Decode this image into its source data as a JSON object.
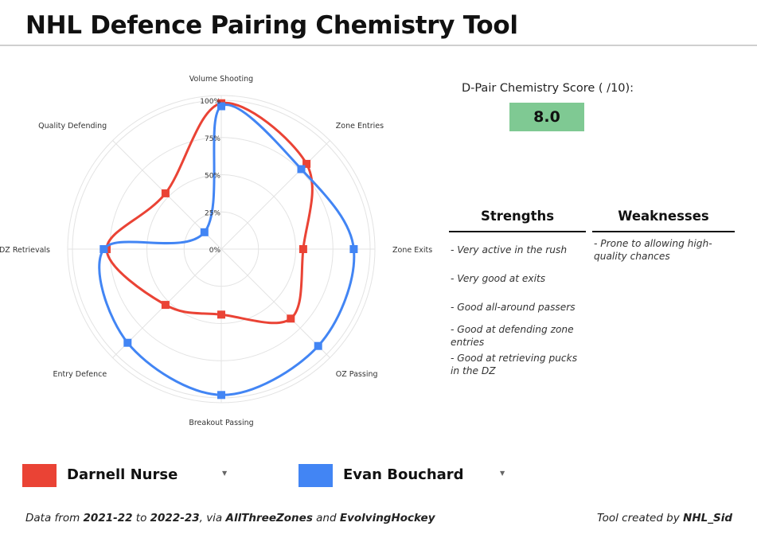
{
  "page_title": "NHL Defence Pairing Chemistry Tool",
  "score": {
    "label": "D-Pair Chemistry Score ( /10):",
    "value": "8.0",
    "box_color": "#7fc993"
  },
  "strengths": {
    "title": "Strengths",
    "items": [
      "- Very active in the rush",
      "- Very good at exits",
      "- Good all-around passers",
      "- Good at defending zone entries",
      "- Good at retrieving pucks in the DZ"
    ]
  },
  "weaknesses": {
    "title": "Weaknesses",
    "items": [
      "- Prone to allowing high-quality chances"
    ]
  },
  "players": [
    {
      "name": "Darnell Nurse",
      "color": "#ea4335",
      "dropdown_icon": "caret-down-icon",
      "caret": "▼"
    },
    {
      "name": "Evan Bouchard",
      "color": "#4285f4",
      "dropdown_icon": "caret-down-icon",
      "caret": "▼"
    }
  ],
  "footer": {
    "prefix": "Data from ",
    "from_season": "2021-22",
    "to_word": " to ",
    "to_season": "2022-23",
    "via_word": ", via ",
    "source1": "AllThreeZones",
    "and_word": " and ",
    "source2": "EvolvingHockey",
    "credit_prefix": "Tool created by ",
    "credit_name": "NHL_Sid"
  },
  "chart_data": {
    "type": "radar",
    "axes": [
      "Volume Shooting",
      "Zone Entries",
      "Zone Exits",
      "OZ Passing",
      "Breakout Passing",
      "Entry Defence",
      "DZ Retrievals",
      "Quality Defending"
    ],
    "tick_labels": [
      "0%",
      "25%",
      "50%",
      "75%",
      "100%"
    ],
    "range": [
      0,
      100
    ],
    "grid": true,
    "legend": "bottom",
    "series": [
      {
        "name": "Darnell Nurse",
        "color": "#ea4335",
        "values": [
          98,
          81,
          55,
          66,
          44,
          53,
          77,
          53
        ]
      },
      {
        "name": "Evan Bouchard",
        "color": "#4285f4",
        "values": [
          96,
          76,
          89,
          92,
          98,
          89,
          79,
          16
        ]
      }
    ]
  }
}
